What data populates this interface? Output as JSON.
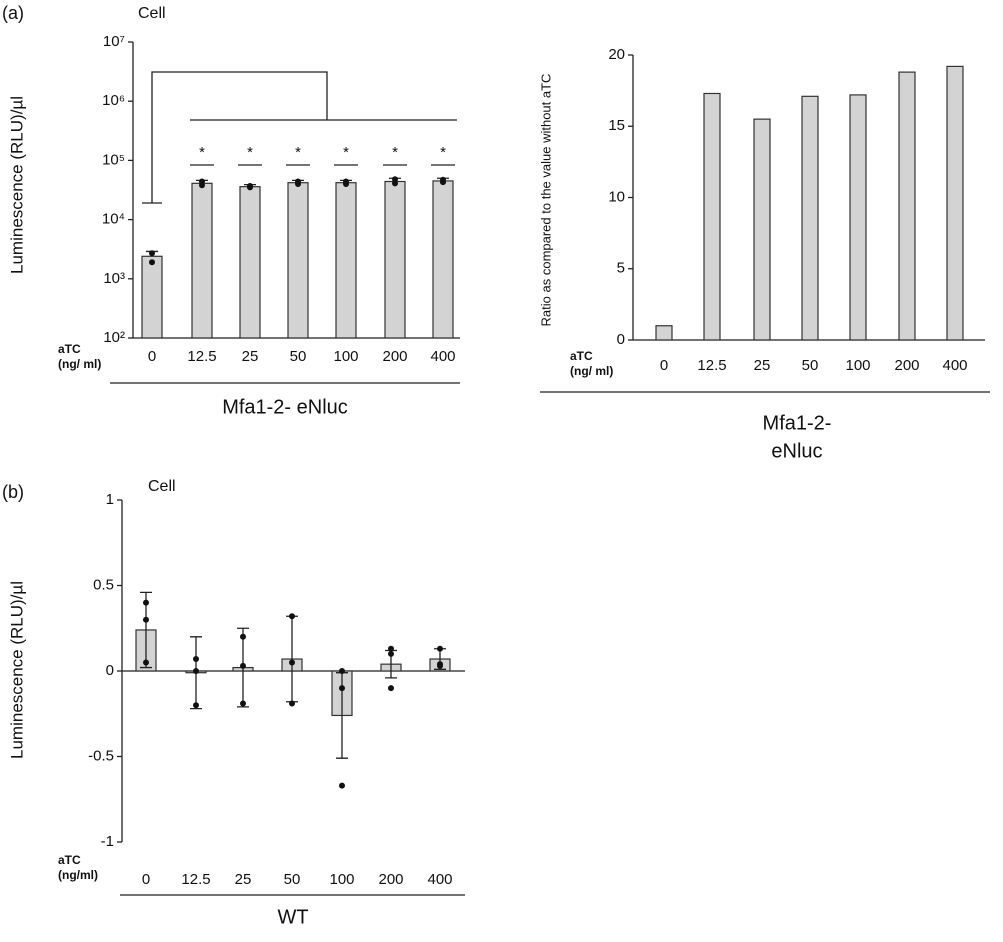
{
  "chart_data": [
    {
      "type": "bar",
      "panel": "(a)",
      "title": "Cell",
      "ylabel": "Luminescence (RLU)/µl",
      "x_axis_label": [
        "aTC",
        "(ng/ ml)"
      ],
      "group_label": [
        "Mfa1-2- eNluc"
      ],
      "categories": [
        "0",
        "12.5",
        "25",
        "50",
        "100",
        "200",
        "400"
      ],
      "values": [
        2400,
        41000,
        36000,
        42000,
        42000,
        44000,
        45000
      ],
      "errors": [
        500,
        5000,
        3000,
        4000,
        4000,
        6000,
        5000
      ],
      "points": [
        [
          1900,
          2700
        ],
        [
          38000,
          44000
        ],
        [
          35000,
          37000
        ],
        [
          40000,
          44000
        ],
        [
          40000,
          44000
        ],
        [
          41000,
          48000
        ],
        [
          43000,
          47000
        ]
      ],
      "significance": "*",
      "color": "#d3d3d3",
      "log_scale": true,
      "ylim": [
        100,
        10000000
      ],
      "yticks": [
        {
          "value": 100,
          "label": "10²"
        },
        {
          "value": 1000,
          "label": "10³"
        },
        {
          "value": 10000,
          "label": "10⁴"
        },
        {
          "value": 100000,
          "label": "10⁵"
        },
        {
          "value": 1000000,
          "label": "10⁶"
        },
        {
          "value": 10000000,
          "label": "10⁷"
        }
      ]
    },
    {
      "type": "bar",
      "ylabel": "Ratio as compared to the value without aTC",
      "x_axis_label": [
        "aTC",
        "(ng/ ml)"
      ],
      "group_label": [
        "Mfa1-2-",
        "eNluc"
      ],
      "categories": [
        "0",
        "12.5",
        "25",
        "50",
        "100",
        "200",
        "400"
      ],
      "values": [
        1,
        17.3,
        15.5,
        17.1,
        17.2,
        18.8,
        19.2
      ],
      "color": "#d3d3d3",
      "log_scale": false,
      "ylim": [
        0,
        20
      ],
      "yticks": [
        0,
        5,
        10,
        15,
        20
      ]
    },
    {
      "type": "bar",
      "panel": "(b)",
      "title": "Cell",
      "ylabel": "Luminescence (RLU)/µl",
      "x_axis_label": [
        "aTC",
        "(ng/ml)"
      ],
      "group_label": [
        "WT"
      ],
      "categories": [
        "0",
        "12.5",
        "25",
        "50",
        "100",
        "200",
        "400"
      ],
      "values": [
        0.24,
        -0.01,
        0.02,
        0.07,
        -0.26,
        0.04,
        0.07
      ],
      "errors": [
        0.22,
        0.21,
        0.23,
        0.25,
        0.25,
        0.08,
        0.06
      ],
      "points": [
        [
          0.4,
          0.3,
          0.05
        ],
        [
          0.07,
          0,
          -0.2
        ],
        [
          0.2,
          0.03,
          -0.19
        ],
        [
          0.32,
          0.05,
          -0.19
        ],
        [
          0,
          -0.1,
          -0.67
        ],
        [
          0.13,
          0.1,
          -0.1
        ],
        [
          0.13,
          0.04,
          0.03
        ]
      ],
      "color": "#d3d3d3",
      "log_scale": false,
      "ylim": [
        -1,
        1
      ],
      "yticks": [
        -1,
        -0.5,
        0,
        0.5,
        1
      ]
    }
  ]
}
